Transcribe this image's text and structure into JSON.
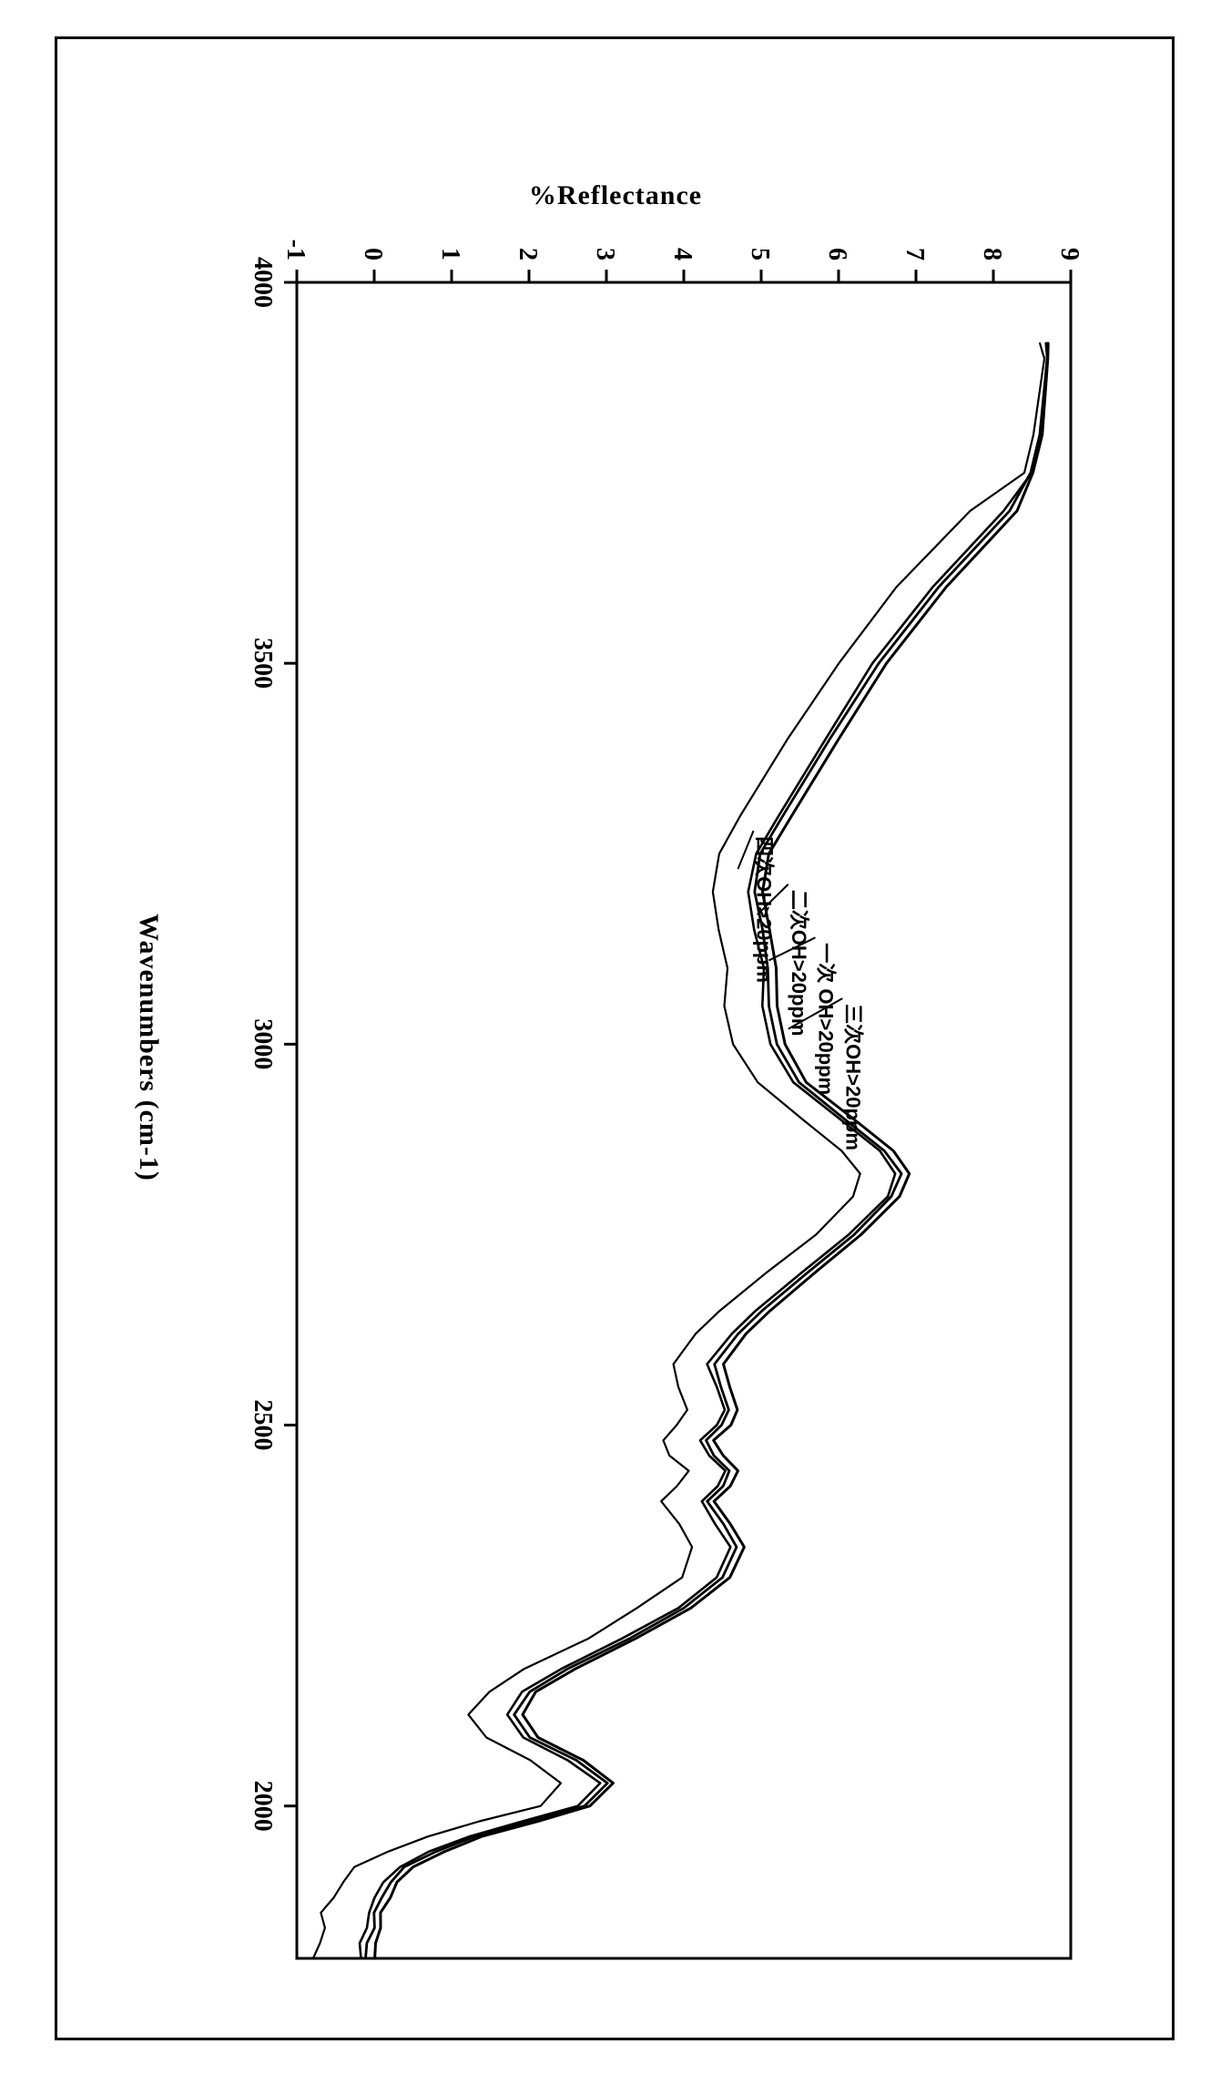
{
  "chart": {
    "type": "line",
    "xlabel": "Wavenumbers (cm-1)",
    "ylabel": "%Reflectance",
    "label_fontsize": 30,
    "tick_fontsize": 28,
    "background_color": "#ffffff",
    "frame_color": "#000000",
    "xlim": [
      4000,
      1800
    ],
    "ylim": [
      -1,
      9
    ],
    "x_ticks": [
      4000,
      3500,
      3000,
      2500,
      2000
    ],
    "y_ticks": [
      -1,
      0,
      1,
      2,
      3,
      4,
      5,
      6,
      7,
      8,
      9
    ],
    "tick_length_major": 14,
    "axis_stroke_width": 3,
    "base_curve_x": [
      3920,
      3900,
      3800,
      3750,
      3700,
      3600,
      3500,
      3400,
      3300,
      3250,
      3200,
      3150,
      3100,
      3050,
      3000,
      2950,
      2900,
      2860,
      2830,
      2800,
      2750,
      2700,
      2650,
      2620,
      2580,
      2550,
      2520,
      2500,
      2480,
      2460,
      2440,
      2420,
      2400,
      2370,
      2340,
      2300,
      2260,
      2220,
      2180,
      2150,
      2120,
      2090,
      2060,
      2030,
      2000,
      1980,
      1960,
      1940,
      1920,
      1900,
      1880,
      1860,
      1840,
      1820,
      1800
    ],
    "base_curve_y": [
      8.7,
      8.7,
      8.6,
      8.5,
      8.2,
      7.3,
      6.5,
      5.9,
      5.3,
      5.0,
      4.9,
      5.0,
      5.1,
      5.1,
      5.2,
      5.5,
      6.1,
      6.6,
      6.8,
      6.7,
      6.2,
      5.6,
      5.0,
      4.7,
      4.4,
      4.5,
      4.6,
      4.5,
      4.3,
      4.4,
      4.6,
      4.5,
      4.3,
      4.5,
      4.7,
      4.5,
      4.0,
      3.3,
      2.5,
      2.0,
      1.8,
      2.0,
      2.6,
      3.0,
      2.7,
      2.0,
      1.3,
      0.8,
      0.4,
      0.2,
      0.1,
      0.0,
      0.0,
      -0.1,
      -0.1
    ],
    "series": [
      {
        "name": "series-3",
        "label": "三次OH>20ppm",
        "color": "#000000",
        "stroke_width": 3.0,
        "y_offset": 0.1,
        "noise": 0.02,
        "label_anchor_x": 3020,
        "label_anchor_y": 5.35,
        "label_text_x": 3060,
        "label_text_y": 6.05
      },
      {
        "name": "series-1",
        "label": "一次 OH>20ppm",
        "color": "#000000",
        "stroke_width": 2.8,
        "y_offset": 0.0,
        "noise": 0.02,
        "label_anchor_x": 3110,
        "label_anchor_y": 5.1,
        "label_text_x": 3140,
        "label_text_y": 5.7
      },
      {
        "name": "series-2",
        "label": "二次OH>20ppm",
        "color": "#000000",
        "stroke_width": 2.6,
        "y_offset": -0.08,
        "noise": 0.02,
        "label_anchor_x": 3170,
        "label_anchor_y": 4.95,
        "label_text_x": 3210,
        "label_text_y": 5.35
      },
      {
        "name": "series-4",
        "label": "四次OH>20ppm",
        "color": "#7a7a7a",
        "stroke_width": 2.2,
        "y_offset": -0.55,
        "noise": 0.06,
        "label_anchor_x": 3230,
        "label_anchor_y": 4.7,
        "label_text_x": 3280,
        "label_text_y": 4.9
      }
    ]
  }
}
